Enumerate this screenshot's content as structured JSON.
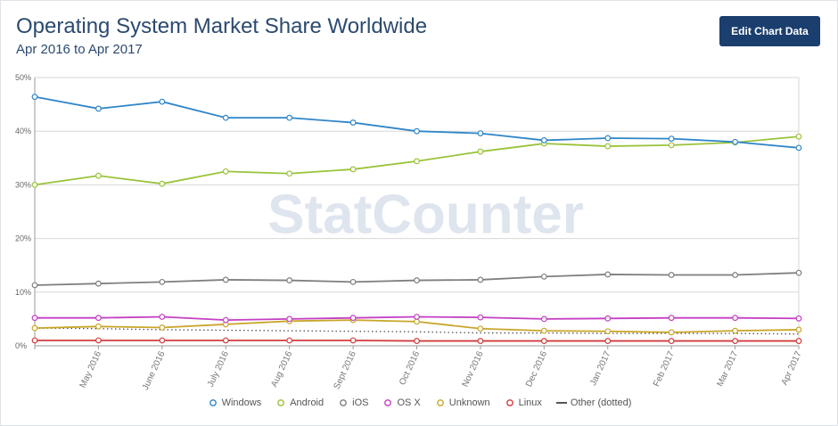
{
  "header": {
    "title": "Operating System Market Share Worldwide",
    "subtitle": "Apr 2016 to Apr 2017",
    "edit_button_label": "Edit Chart Data"
  },
  "watermark": "StatCounter",
  "chart_data": {
    "type": "line",
    "x": [
      "Apr 2016",
      "May 2016",
      "June 2016",
      "July 2016",
      "Aug 2016",
      "Sept 2016",
      "Oct 2016",
      "Nov 2016",
      "Dec 2016",
      "Jan 2017",
      "Feb 2017",
      "Mar 2017",
      "Apr 2017"
    ],
    "x_tick_labels": [
      "",
      "May 2016",
      "June 2016",
      "July 2016",
      "Aug 2016",
      "Sept 2016",
      "Oct 2016",
      "Nov 2016",
      "Dec 2016",
      "Jan 2017",
      "Feb 2017",
      "Mar 2017",
      "Apr 2017"
    ],
    "ylim": [
      0,
      50
    ],
    "y_ticks": [
      0,
      10,
      20,
      30,
      40,
      50
    ],
    "y_tick_labels": [
      "0%",
      "10%",
      "20%",
      "30%",
      "40%",
      "50%"
    ],
    "grid": true,
    "legend_position": "bottom",
    "series": [
      {
        "name": "Windows",
        "color": "#2f86c8",
        "style": "marker",
        "values": [
          46.4,
          44.2,
          45.5,
          42.5,
          42.5,
          41.6,
          40.0,
          39.6,
          38.3,
          38.7,
          38.6,
          38.0,
          36.9
        ]
      },
      {
        "name": "Android",
        "color": "#9ac33a",
        "style": "marker",
        "values": [
          30.0,
          31.7,
          30.2,
          32.5,
          32.1,
          32.9,
          34.4,
          36.2,
          37.7,
          37.2,
          37.4,
          37.9,
          39.0
        ]
      },
      {
        "name": "iOS",
        "color": "#7f7f7f",
        "style": "marker",
        "values": [
          11.3,
          11.6,
          11.9,
          12.3,
          12.2,
          11.9,
          12.2,
          12.3,
          12.9,
          13.3,
          13.2,
          13.2,
          13.6
        ]
      },
      {
        "name": "OS X",
        "color": "#c43fc4",
        "style": "marker",
        "values": [
          5.2,
          5.2,
          5.4,
          4.8,
          5.0,
          5.2,
          5.4,
          5.3,
          5.0,
          5.1,
          5.2,
          5.2,
          5.1
        ]
      },
      {
        "name": "Unknown",
        "color": "#c9a629",
        "style": "marker",
        "values": [
          3.3,
          3.6,
          3.4,
          4.0,
          4.6,
          4.8,
          4.5,
          3.2,
          2.8,
          2.7,
          2.5,
          2.8,
          3.0
        ]
      },
      {
        "name": "Linux",
        "color": "#d23c3c",
        "style": "marker",
        "values": [
          1.0,
          1.0,
          1.0,
          1.0,
          1.0,
          1.0,
          0.9,
          0.9,
          0.9,
          0.9,
          0.9,
          0.9,
          0.9
        ]
      },
      {
        "name": "Other (dotted)",
        "color": "#555555",
        "style": "dotted",
        "values": [
          3.3,
          3.2,
          3.0,
          2.9,
          2.8,
          2.7,
          2.6,
          2.4,
          2.4,
          2.3,
          2.3,
          2.3,
          2.2
        ]
      }
    ]
  }
}
